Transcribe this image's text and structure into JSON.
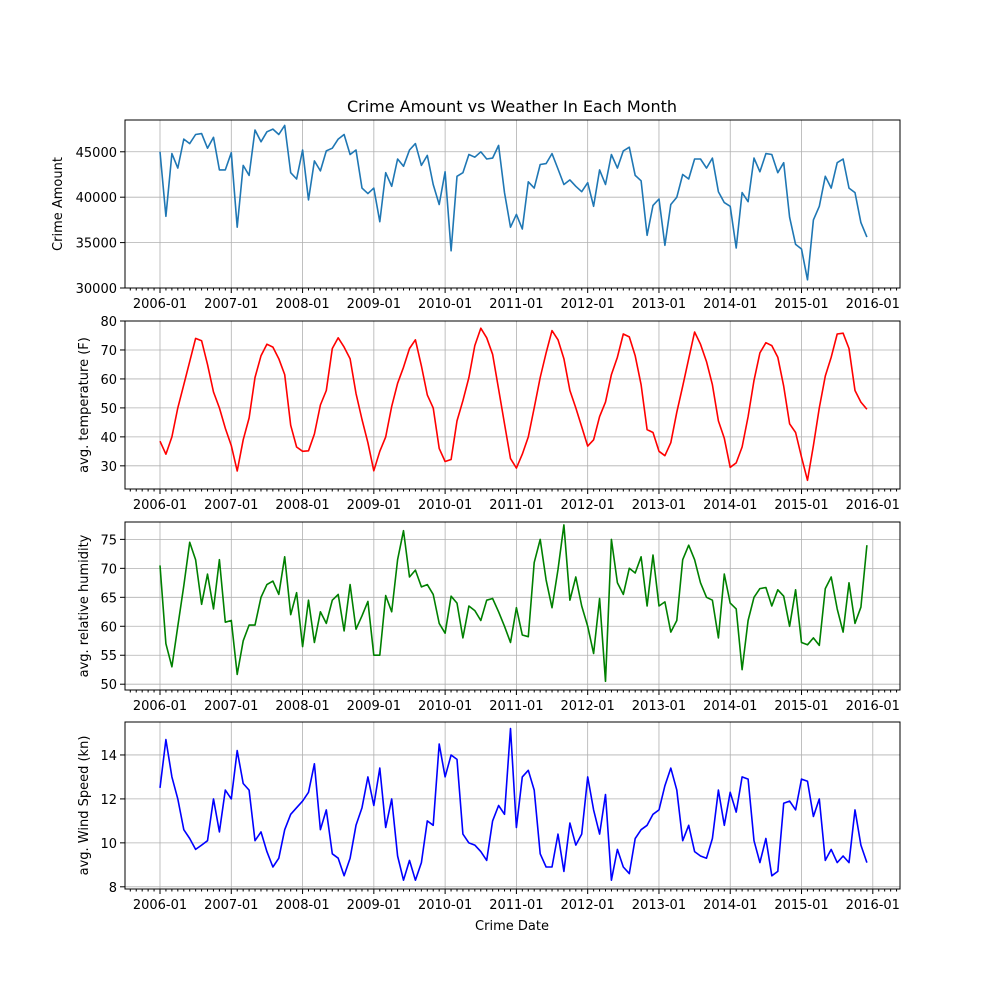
{
  "chart_data": [
    {
      "type": "line",
      "title": "Crime Amount vs Weather In Each Month",
      "xlabel": "",
      "ylabel": "Crime Amount",
      "ylim": [
        30000,
        48500
      ],
      "yticks": [
        30000,
        35000,
        40000,
        45000
      ],
      "xticks": [
        "2006-01",
        "2007-01",
        "2008-01",
        "2009-01",
        "2010-01",
        "2011-01",
        "2012-01",
        "2013-01",
        "2014-01",
        "2015-01",
        "2016-01"
      ],
      "color": "#1f77b4",
      "grid": true,
      "x_start": "2006-01",
      "values": [
        45000,
        37900,
        44800,
        43200,
        46400,
        45900,
        46900,
        47000,
        45400,
        46600,
        43000,
        43000,
        44900,
        36700,
        43500,
        42400,
        47400,
        46100,
        47200,
        47500,
        46900,
        47900,
        42700,
        42000,
        45200,
        39700,
        44000,
        42900,
        45100,
        45400,
        46400,
        46900,
        44700,
        45200,
        41000,
        40400,
        41000,
        37300,
        42700,
        41200,
        44200,
        43400,
        45200,
        45900,
        43500,
        44600,
        41400,
        39200,
        42800,
        34100,
        42300,
        42700,
        44700,
        44400,
        45000,
        44200,
        44300,
        45700,
        40500,
        36700,
        38100,
        36500,
        41700,
        41000,
        43600,
        43700,
        44800,
        43100,
        41400,
        41900,
        41200,
        40600,
        41600,
        39000,
        43000,
        41400,
        44700,
        43200,
        45100,
        45500,
        42400,
        41800,
        35800,
        39100,
        39800,
        34700,
        39200,
        40000,
        42500,
        42000,
        44200,
        44200,
        43200,
        44300,
        40600,
        39400,
        39000,
        34400,
        40500,
        39500,
        44300,
        42800,
        44800,
        44700,
        42700,
        43800,
        37800,
        34800,
        34300,
        30900,
        37500,
        39000,
        42300,
        41000,
        43800,
        44200,
        41000,
        40500,
        37200,
        35600
      ]
    },
    {
      "type": "line",
      "ylabel": "avg. temperature (F)",
      "ylim": [
        22,
        80
      ],
      "yticks": [
        30,
        40,
        50,
        60,
        70,
        80
      ],
      "xticks": [
        "2006-01",
        "2007-01",
        "2008-01",
        "2009-01",
        "2010-01",
        "2011-01",
        "2012-01",
        "2013-01",
        "2014-01",
        "2015-01",
        "2016-01"
      ],
      "color": "#ff0000",
      "grid": true,
      "x_start": "2006-01",
      "values": [
        38.5,
        34,
        40,
        50,
        58,
        66,
        74,
        73.2,
        65,
        55.5,
        50,
        43,
        37,
        28.2,
        39,
        46.5,
        60.5,
        68,
        72,
        71,
        67,
        61.5,
        44,
        36.5,
        35,
        35.2,
        41,
        51,
        56,
        70.5,
        74.2,
        71,
        67,
        55,
        46,
        38,
        28.3,
        35,
        40,
        50.5,
        58.5,
        64,
        70.5,
        73.5,
        64.5,
        54.5,
        50,
        36,
        31.5,
        32.2,
        45.5,
        52.5,
        60.5,
        71.5,
        77.5,
        74.2,
        68.5,
        56.5,
        44.5,
        32.5,
        29.2,
        34,
        40,
        50,
        60.5,
        69,
        76.7,
        73.5,
        67,
        56,
        50,
        43.5,
        36.8,
        39,
        47,
        52,
        61.5,
        67.5,
        75.5,
        74.5,
        68,
        58,
        42.5,
        41.5,
        35,
        33.5,
        38,
        48.5,
        57.5,
        67,
        76.2,
        72,
        66,
        58,
        45.5,
        39.5,
        29.5,
        31,
        36.5,
        47,
        59.5,
        69,
        72.5,
        71.5,
        67.5,
        57.5,
        44.5,
        41.5,
        33,
        25,
        37,
        50,
        61,
        67.5,
        75.5,
        75.8,
        70.5,
        56,
        52,
        49.5
      ]
    },
    {
      "type": "line",
      "ylabel": "avg. relative humidity",
      "ylim": [
        49,
        78
      ],
      "yticks": [
        50,
        55,
        60,
        65,
        70,
        75
      ],
      "xticks": [
        "2006-01",
        "2007-01",
        "2008-01",
        "2009-01",
        "2010-01",
        "2011-01",
        "2012-01",
        "2013-01",
        "2014-01",
        "2015-01",
        "2016-01"
      ],
      "color": "#008000",
      "grid": true,
      "x_start": "2006-01",
      "values": [
        70.5,
        57,
        53,
        60,
        67,
        74.5,
        71.5,
        63.8,
        69,
        63,
        71.5,
        60.7,
        61,
        51.7,
        57.5,
        60.2,
        60.2,
        65,
        67.2,
        67.8,
        65.5,
        72,
        62,
        65.8,
        56.5,
        64.5,
        57.2,
        62.5,
        60.5,
        64.5,
        65.5,
        59.2,
        67.2,
        59.5,
        61.8,
        64.3,
        55,
        55,
        65.3,
        62.5,
        71.5,
        76.5,
        68.5,
        69.7,
        66.8,
        67.2,
        65.5,
        60.5,
        58.8,
        65.2,
        64,
        58,
        63.5,
        62.7,
        61,
        64.5,
        64.8,
        62.5,
        60,
        57.2,
        63.2,
        58.5,
        58.2,
        71,
        75,
        68,
        63.2,
        69.8,
        77.5,
        64.5,
        68.5,
        63.5,
        60,
        55.3,
        64.8,
        50.5,
        75,
        67.5,
        65.5,
        70,
        69.2,
        72,
        63.5,
        72.3,
        63.5,
        64.2,
        59,
        61,
        71.5,
        74,
        71.5,
        67.5,
        65,
        64.5,
        58,
        69,
        64,
        63,
        52.5,
        61,
        65,
        66.5,
        66.7,
        63.5,
        66.3,
        65.2,
        60,
        66.3,
        57.2,
        56.8,
        58,
        56.7,
        66.5,
        68.5,
        63,
        59,
        67.5,
        60.5,
        63.3,
        74
      ]
    },
    {
      "type": "line",
      "ylabel": "avg. Wind Speed (kn)",
      "xlabel": "Crime Date",
      "ylim": [
        7.9,
        15.5
      ],
      "yticks": [
        8,
        10,
        12,
        14
      ],
      "xticks": [
        "2006-01",
        "2007-01",
        "2008-01",
        "2009-01",
        "2010-01",
        "2011-01",
        "2012-01",
        "2013-01",
        "2014-01",
        "2015-01",
        "2016-01"
      ],
      "color": "#0000ff",
      "grid": true,
      "x_start": "2006-01",
      "values": [
        12.5,
        14.7,
        13,
        12,
        10.6,
        10.2,
        9.7,
        9.9,
        10.1,
        12,
        10.5,
        12.4,
        12,
        14.2,
        12.7,
        12.4,
        10.1,
        10.5,
        9.6,
        8.9,
        9.3,
        10.6,
        11.3,
        11.6,
        11.9,
        12.3,
        13.6,
        10.6,
        11.5,
        9.5,
        9.3,
        8.5,
        9.3,
        10.8,
        11.6,
        13,
        11.7,
        13.4,
        10.7,
        12,
        9.4,
        8.3,
        9.2,
        8.3,
        9.1,
        11,
        10.8,
        14.5,
        13,
        14,
        13.8,
        10.4,
        10,
        9.9,
        9.6,
        9.2,
        11,
        11.7,
        11.3,
        15.2,
        10.7,
        13,
        13.3,
        12.4,
        9.5,
        8.9,
        8.9,
        10.4,
        8.7,
        10.9,
        9.9,
        10.4,
        13,
        11.5,
        10.4,
        12.2,
        8.3,
        9.7,
        8.9,
        8.6,
        10.2,
        10.6,
        10.8,
        11.3,
        11.5,
        12.6,
        13.4,
        12.4,
        10.1,
        10.8,
        9.6,
        9.4,
        9.3,
        10.2,
        12.4,
        10.8,
        12.3,
        11.4,
        13,
        12.9,
        10.1,
        9.1,
        10.2,
        8.5,
        8.7,
        11.8,
        11.9,
        11.5,
        12.9,
        12.8,
        11.2,
        12,
        9.2,
        9.7,
        9.1,
        9.4,
        9.1,
        11.5,
        9.9,
        9.1
      ]
    }
  ]
}
